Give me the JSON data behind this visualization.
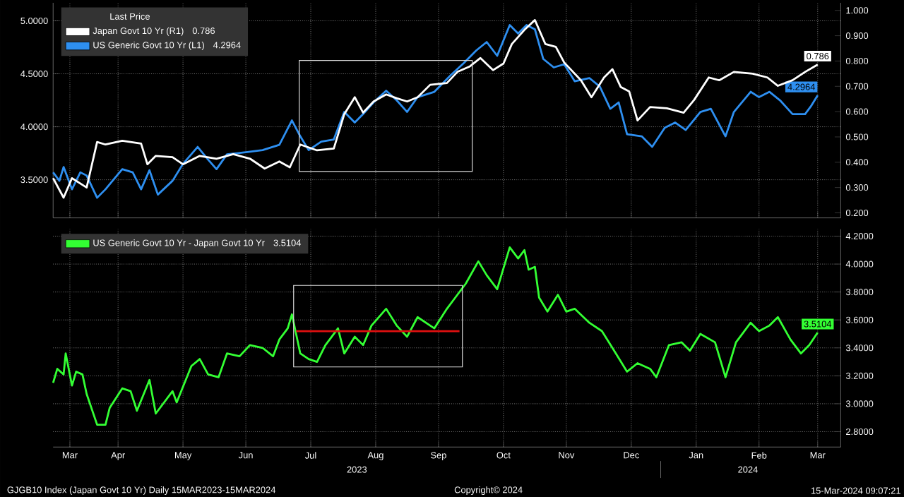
{
  "chart_data": [
    {
      "type": "line",
      "legend_title": "Last Price",
      "legend": "top left",
      "grid": true,
      "tick_labels": "y",
      "annotations": [
        "0.786",
        "4.2964"
      ],
      "xlim": [
        "2023-03-15",
        "2024-03-25"
      ],
      "xticks": [
        {
          "value": "2023-03-23",
          "label": null
        },
        {
          "value": "2023-04-15",
          "label": null
        },
        {
          "value": "2023-05-16",
          "label": null
        },
        {
          "value": "2023-06-15",
          "label": null
        },
        {
          "value": "2023-07-16",
          "label": null
        },
        {
          "value": "2023-08-16",
          "label": null
        },
        {
          "value": "2023-09-15",
          "label": null
        },
        {
          "value": "2023-10-16",
          "label": null
        },
        {
          "value": "2023-11-15",
          "label": null
        },
        {
          "value": "2023-12-16",
          "label": null
        },
        {
          "value": "2024-01-16",
          "label": null
        },
        {
          "value": "2024-02-15",
          "label": null
        },
        {
          "value": "2024-03-14",
          "label": null
        }
      ],
      "ylim": [
        3.14,
        5.17
      ],
      "yticks": [
        {
          "value": 3.5,
          "label": "3.5000"
        },
        {
          "value": 4.0,
          "label": "4.0000"
        },
        {
          "value": 4.5,
          "label": "4.5000"
        },
        {
          "value": 5.0,
          "label": "5.0000"
        }
      ],
      "y2lim": [
        0.18,
        1.03
      ],
      "y2ticks": [
        {
          "value": 0.2,
          "label": "0.200"
        },
        {
          "value": 0.3,
          "label": "0.300"
        },
        {
          "value": 0.4,
          "label": "0.400"
        },
        {
          "value": 0.5,
          "label": "0.500"
        },
        {
          "value": 0.6,
          "label": "0.600"
        },
        {
          "value": 0.7,
          "label": "0.700"
        },
        {
          "value": 0.8,
          "label": "0.800"
        },
        {
          "value": 0.9,
          "label": "0.900"
        },
        {
          "value": 1.0,
          "label": "1.000"
        }
      ],
      "series": [
        {
          "name": "Japan Govt 10 Yr  (R1)",
          "color": "#ffffff",
          "axis": "y2",
          "x": [
            "2023-03-15",
            "2023-03-20",
            "2023-03-24",
            "2023-03-31",
            "2023-04-05",
            "2023-04-09",
            "2023-04-17",
            "2023-04-26",
            "2023-04-29",
            "2023-05-03",
            "2023-05-11",
            "2023-05-16",
            "2023-05-24",
            "2023-06-01",
            "2023-06-09",
            "2023-06-17",
            "2023-06-24",
            "2023-07-01",
            "2023-07-06",
            "2023-07-11",
            "2023-07-19",
            "2023-07-27",
            "2023-08-01",
            "2023-08-06",
            "2023-08-10",
            "2023-08-15",
            "2023-08-21",
            "2023-08-26",
            "2023-08-31",
            "2023-09-05",
            "2023-09-11",
            "2023-09-19",
            "2023-09-24",
            "2023-09-30",
            "2023-10-05",
            "2023-10-11",
            "2023-10-16",
            "2023-10-20",
            "2023-10-26",
            "2023-10-31",
            "2023-11-05",
            "2023-11-10",
            "2023-11-14",
            "2023-11-22",
            "2023-11-27",
            "2023-12-03",
            "2023-12-07",
            "2023-12-11",
            "2023-12-15",
            "2023-12-19",
            "2023-12-25",
            "2024-01-02",
            "2024-01-10",
            "2024-01-15",
            "2024-01-22",
            "2024-01-27",
            "2024-02-03",
            "2024-02-12",
            "2024-02-19",
            "2024-02-24",
            "2024-03-02",
            "2024-03-08",
            "2024-03-14"
          ],
          "values": [
            0.337,
            0.26,
            0.337,
            0.3,
            0.48,
            0.47,
            0.485,
            0.474,
            0.392,
            0.425,
            0.42,
            0.392,
            0.425,
            0.414,
            0.432,
            0.414,
            0.375,
            0.403,
            0.38,
            0.47,
            0.447,
            0.454,
            0.59,
            0.657,
            0.596,
            0.64,
            0.668,
            0.653,
            0.64,
            0.657,
            0.706,
            0.713,
            0.757,
            0.779,
            0.812,
            0.764,
            0.79,
            0.867,
            0.923,
            0.962,
            0.867,
            0.856,
            0.794,
            0.724,
            0.657,
            0.735,
            0.768,
            0.697,
            0.68,
            0.565,
            0.618,
            0.613,
            0.596,
            0.646,
            0.735,
            0.724,
            0.757,
            0.75,
            0.735,
            0.702,
            0.724,
            0.757,
            0.786
          ],
          "value_labels": [
            null,
            null,
            null,
            null,
            null,
            null,
            null,
            null,
            null,
            null,
            null,
            null,
            null,
            null,
            null,
            null,
            null,
            null,
            null,
            null,
            null,
            null,
            null,
            null,
            null,
            null,
            null,
            null,
            null,
            null,
            null,
            null,
            null,
            null,
            null,
            null,
            null,
            null,
            null,
            null,
            null,
            null,
            null,
            null,
            null,
            null,
            null,
            null,
            null,
            null,
            null,
            null,
            null,
            null,
            null,
            null,
            null,
            null,
            null,
            null,
            null,
            null,
            "0.786"
          ]
        },
        {
          "name": "US Generic Govt 10 Yr  (L1)",
          "color": "#2e8ff0",
          "axis": "y",
          "x": [
            "2023-03-15",
            "2023-03-18",
            "2023-03-20",
            "2023-03-24",
            "2023-03-28",
            "2023-03-31",
            "2023-04-05",
            "2023-04-09",
            "2023-04-17",
            "2023-04-22",
            "2023-04-26",
            "2023-04-30",
            "2023-05-04",
            "2023-05-11",
            "2023-05-16",
            "2023-05-23",
            "2023-05-28",
            "2023-06-01",
            "2023-06-06",
            "2023-06-15",
            "2023-06-23",
            "2023-07-01",
            "2023-07-07",
            "2023-07-11",
            "2023-07-15",
            "2023-07-21",
            "2023-07-27",
            "2023-08-01",
            "2023-08-06",
            "2023-08-10",
            "2023-08-15",
            "2023-08-21",
            "2023-08-26",
            "2023-08-31",
            "2023-09-05",
            "2023-09-13",
            "2023-09-21",
            "2023-09-27",
            "2023-10-03",
            "2023-10-08",
            "2023-10-13",
            "2023-10-19",
            "2023-10-23",
            "2023-10-27",
            "2023-10-31",
            "2023-11-04",
            "2023-11-09",
            "2023-11-14",
            "2023-11-19",
            "2023-11-26",
            "2023-12-01",
            "2023-12-06",
            "2023-12-10",
            "2023-12-14",
            "2023-12-21",
            "2023-12-26",
            "2024-01-01",
            "2024-01-06",
            "2024-01-11",
            "2024-01-18",
            "2024-01-23",
            "2024-01-30",
            "2024-02-03",
            "2024-02-11",
            "2024-02-15",
            "2024-02-20",
            "2024-02-25",
            "2024-03-02",
            "2024-03-08",
            "2024-03-11",
            "2024-03-14"
          ],
          "values": [
            3.57,
            3.49,
            3.62,
            3.41,
            3.57,
            3.54,
            3.33,
            3.41,
            3.6,
            3.57,
            3.41,
            3.59,
            3.36,
            3.49,
            3.65,
            3.81,
            3.69,
            3.6,
            3.74,
            3.76,
            3.78,
            3.83,
            4.06,
            3.91,
            3.78,
            3.86,
            3.88,
            4.14,
            4.04,
            4.12,
            4.23,
            4.34,
            4.25,
            4.14,
            4.28,
            4.33,
            4.49,
            4.6,
            4.72,
            4.8,
            4.67,
            4.96,
            4.88,
            4.96,
            4.92,
            4.64,
            4.56,
            4.59,
            4.43,
            4.46,
            4.38,
            4.17,
            4.23,
            3.93,
            3.91,
            3.81,
            3.99,
            4.04,
            3.97,
            4.14,
            4.17,
            3.91,
            4.14,
            4.33,
            4.28,
            4.33,
            4.25,
            4.12,
            4.12,
            4.2,
            4.2964
          ],
          "value_labels": [
            null,
            null,
            null,
            null,
            null,
            null,
            null,
            null,
            null,
            null,
            null,
            null,
            null,
            null,
            null,
            null,
            null,
            null,
            null,
            null,
            null,
            null,
            null,
            null,
            null,
            null,
            null,
            null,
            null,
            null,
            null,
            null,
            null,
            null,
            null,
            null,
            null,
            null,
            null,
            null,
            null,
            null,
            null,
            null,
            null,
            null,
            null,
            null,
            null,
            null,
            null,
            null,
            null,
            null,
            null,
            null,
            null,
            null,
            null,
            null,
            null,
            null,
            null,
            null,
            null,
            null,
            null,
            null,
            null,
            null,
            "4.2964"
          ]
        }
      ]
    },
    {
      "type": "line",
      "legend": "top left",
      "grid": true,
      "xlim": [
        "2023-03-15",
        "2024-03-25"
      ],
      "xticks": [
        {
          "value": "2023-03-23",
          "label": "Mar"
        },
        {
          "value": "2023-04-15",
          "label": "Apr"
        },
        {
          "value": "2023-05-16",
          "label": "May"
        },
        {
          "value": "2023-06-15",
          "label": "Jun"
        },
        {
          "value": "2023-07-16",
          "label": "Jul"
        },
        {
          "value": "2023-08-16",
          "label": "Aug"
        },
        {
          "value": "2023-09-15",
          "label": "Sep"
        },
        {
          "value": "2023-10-16",
          "label": "Oct"
        },
        {
          "value": "2023-11-15",
          "label": "Nov"
        },
        {
          "value": "2023-12-16",
          "label": "Dec"
        },
        {
          "value": "2024-01-16",
          "label": "Jan"
        },
        {
          "value": "2024-02-15",
          "label": "Feb"
        },
        {
          "value": "2024-03-14",
          "label": "Mar"
        }
      ],
      "y2lim": [
        2.69,
        4.25
      ],
      "y2ticks": [
        {
          "value": 2.8,
          "label": "2.8000"
        },
        {
          "value": 3.0,
          "label": "3.0000"
        },
        {
          "value": 3.2,
          "label": "3.2000"
        },
        {
          "value": 3.4,
          "label": "3.4000"
        },
        {
          "value": 3.6,
          "label": "3.6000"
        },
        {
          "value": 3.8,
          "label": "3.8000"
        },
        {
          "value": 4.0,
          "label": "4.0000"
        },
        {
          "value": 4.2,
          "label": "4.2000"
        }
      ],
      "annotations": [
        "3.5104",
        "2023",
        "2024",
        "GJGB10 Index (Japan Govt 10 Yr)  Daily 15MAR2023-15MAR2024",
        "Copyright© 2024",
        "15-Mar-2024 09:07:21"
      ],
      "series": [
        {
          "name": "US Generic Govt 10 Yr - Japan Govt 10 Yr",
          "color": "#33ff33",
          "axis": "y2",
          "x": [
            "2023-03-15",
            "2023-03-17",
            "2023-03-20",
            "2023-03-21",
            "2023-03-24",
            "2023-03-26",
            "2023-03-29",
            "2023-03-31",
            "2023-04-05",
            "2023-04-09",
            "2023-04-11",
            "2023-04-17",
            "2023-04-21",
            "2023-04-24",
            "2023-04-30",
            "2023-05-03",
            "2023-05-11",
            "2023-05-13",
            "2023-05-20",
            "2023-05-24",
            "2023-05-28",
            "2023-06-02",
            "2023-06-06",
            "2023-06-12",
            "2023-06-17",
            "2023-06-23",
            "2023-06-28",
            "2023-07-01",
            "2023-07-05",
            "2023-07-07",
            "2023-07-11",
            "2023-07-15",
            "2023-07-19",
            "2023-07-23",
            "2023-07-29",
            "2023-08-01",
            "2023-08-06",
            "2023-08-10",
            "2023-08-14",
            "2023-08-21",
            "2023-08-26",
            "2023-08-31",
            "2023-09-05",
            "2023-09-13",
            "2023-09-19",
            "2023-09-23",
            "2023-09-28",
            "2023-10-04",
            "2023-10-08",
            "2023-10-13",
            "2023-10-19",
            "2023-10-23",
            "2023-10-26",
            "2023-10-28",
            "2023-10-31",
            "2023-11-02",
            "2023-11-06",
            "2023-11-11",
            "2023-11-15",
            "2023-11-19",
            "2023-11-26",
            "2023-12-02",
            "2023-12-07",
            "2023-12-14",
            "2023-12-19",
            "2023-12-25",
            "2023-12-28",
            "2024-01-03",
            "2024-01-09",
            "2024-01-13",
            "2024-01-18",
            "2024-01-25",
            "2024-01-30",
            "2024-02-04",
            "2024-02-11",
            "2024-02-15",
            "2024-02-20",
            "2024-02-24",
            "2024-03-01",
            "2024-03-06",
            "2024-03-10",
            "2024-03-14"
          ],
          "values": [
            3.15,
            3.25,
            3.21,
            3.36,
            3.13,
            3.23,
            3.21,
            3.07,
            2.85,
            2.85,
            2.97,
            3.11,
            3.09,
            2.95,
            3.17,
            2.93,
            3.09,
            3.01,
            3.27,
            3.32,
            3.21,
            3.19,
            3.36,
            3.34,
            3.42,
            3.4,
            3.34,
            3.46,
            3.54,
            3.64,
            3.36,
            3.32,
            3.3,
            3.42,
            3.54,
            3.36,
            3.48,
            3.42,
            3.56,
            3.68,
            3.56,
            3.48,
            3.62,
            3.54,
            3.68,
            3.76,
            3.86,
            4.02,
            3.92,
            3.82,
            4.12,
            4.04,
            4.1,
            3.96,
            3.98,
            3.76,
            3.66,
            3.78,
            3.66,
            3.68,
            3.58,
            3.52,
            3.4,
            3.23,
            3.29,
            3.25,
            3.19,
            3.42,
            3.44,
            3.38,
            3.5,
            3.44,
            3.19,
            3.44,
            3.58,
            3.52,
            3.56,
            3.62,
            3.46,
            3.36,
            3.42,
            3.5104
          ],
          "value_labels": [
            null,
            null,
            null,
            null,
            null,
            null,
            null,
            null,
            null,
            null,
            null,
            null,
            null,
            null,
            null,
            null,
            null,
            null,
            null,
            null,
            null,
            null,
            null,
            null,
            null,
            null,
            null,
            null,
            null,
            null,
            null,
            null,
            null,
            null,
            null,
            null,
            null,
            null,
            null,
            null,
            null,
            null,
            null,
            null,
            null,
            null,
            null,
            null,
            null,
            null,
            null,
            null,
            null,
            null,
            null,
            null,
            null,
            null,
            null,
            null,
            null,
            null,
            null,
            null,
            null,
            null,
            null,
            null,
            null,
            null,
            null,
            null,
            null,
            null,
            null,
            null,
            null,
            null,
            null,
            null,
            null,
            "3.5104"
          ]
        },
        {
          "color": "#e01010",
          "axis": "y2",
          "x": [
            "2023-07-09",
            "2023-09-25"
          ],
          "values": [
            3.52,
            3.52
          ]
        }
      ]
    }
  ]
}
